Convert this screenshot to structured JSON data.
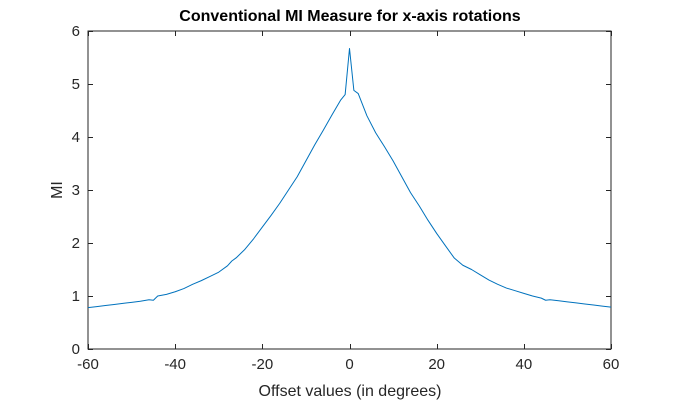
{
  "chart_data": {
    "type": "line",
    "title": "Conventional MI Measure for x-axis rotations",
    "xlabel": "Offset values (in degrees)",
    "ylabel": "MI",
    "xlim": [
      -60,
      60
    ],
    "ylim": [
      0,
      6
    ],
    "xticks": [
      -60,
      -40,
      -20,
      0,
      20,
      40,
      60
    ],
    "yticks": [
      0,
      1,
      2,
      3,
      4,
      5,
      6
    ],
    "xtick_labels": [
      "-60",
      "-40",
      "-20",
      "0",
      "20",
      "40",
      "60"
    ],
    "ytick_labels": [
      "0",
      "1",
      "2",
      "3",
      "4",
      "5",
      "6"
    ],
    "grid": false,
    "legend": "none",
    "series": [
      {
        "color": "#0072BD",
        "x": [
          -60,
          -58,
          -56,
          -54,
          -52,
          -50,
          -48,
          -46,
          -45,
          -44,
          -42,
          -40,
          -38,
          -36,
          -34,
          -32,
          -30,
          -28,
          -27,
          -26,
          -24,
          -22,
          -20,
          -18,
          -16,
          -14,
          -12,
          -10,
          -8,
          -6,
          -4,
          -2,
          -1,
          0,
          1,
          2,
          4,
          6,
          8,
          10,
          12,
          14,
          16,
          18,
          20,
          22,
          24,
          26,
          28,
          30,
          32,
          34,
          36,
          38,
          40,
          42,
          44,
          45,
          46,
          48,
          50,
          52,
          54,
          56,
          58,
          60
        ],
        "y": [
          0.78,
          0.8,
          0.82,
          0.84,
          0.86,
          0.88,
          0.9,
          0.93,
          0.92,
          1.0,
          1.03,
          1.08,
          1.14,
          1.22,
          1.29,
          1.37,
          1.45,
          1.57,
          1.66,
          1.72,
          1.88,
          2.08,
          2.3,
          2.52,
          2.75,
          3.0,
          3.25,
          3.55,
          3.85,
          4.13,
          4.42,
          4.7,
          4.8,
          5.67,
          4.88,
          4.82,
          4.4,
          4.08,
          3.82,
          3.55,
          3.25,
          2.95,
          2.7,
          2.43,
          2.18,
          1.95,
          1.72,
          1.58,
          1.5,
          1.4,
          1.3,
          1.22,
          1.15,
          1.1,
          1.05,
          1.0,
          0.96,
          0.92,
          0.93,
          0.91,
          0.89,
          0.87,
          0.85,
          0.83,
          0.81,
          0.79
        ]
      }
    ]
  }
}
